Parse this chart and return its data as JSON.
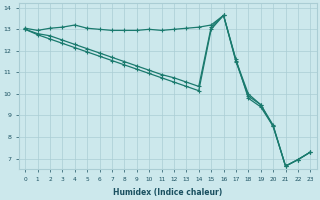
{
  "xlabel": "Humidex (Indice chaleur)",
  "bg_color": "#cce8ec",
  "grid_color": "#aacdd4",
  "line_color": "#1a7a6e",
  "xlim": [
    -0.5,
    23.5
  ],
  "ylim": [
    6.5,
    14.2
  ],
  "xticks": [
    0,
    1,
    2,
    3,
    4,
    5,
    6,
    7,
    8,
    9,
    10,
    11,
    12,
    13,
    14,
    15,
    16,
    17,
    18,
    19,
    20,
    21,
    22,
    23
  ],
  "yticks": [
    7,
    8,
    9,
    10,
    11,
    12,
    13,
    14
  ],
  "series1_x": [
    0,
    1,
    2,
    3,
    4,
    5,
    6,
    7,
    8,
    9,
    10,
    11,
    12,
    13,
    14,
    15,
    16,
    17,
    18,
    19,
    20,
    21,
    22,
    23
  ],
  "series1_y": [
    13.05,
    12.95,
    13.05,
    13.1,
    13.2,
    13.05,
    13.0,
    12.95,
    12.95,
    12.95,
    13.0,
    12.95,
    13.0,
    13.05,
    13.1,
    13.2,
    13.65,
    11.6,
    9.8,
    9.4,
    8.5,
    6.65,
    6.95,
    7.3
  ],
  "series2_x": [
    0,
    1,
    2,
    3,
    4,
    5,
    6,
    7,
    8,
    9,
    10,
    11,
    12,
    13,
    14,
    15,
    16,
    17,
    18,
    19,
    20,
    21,
    22,
    23
  ],
  "series2_y": [
    13.0,
    12.8,
    12.7,
    12.5,
    12.3,
    12.1,
    11.9,
    11.7,
    11.5,
    11.3,
    11.1,
    10.9,
    10.75,
    10.55,
    10.35,
    13.1,
    13.65,
    11.5,
    9.9,
    9.5,
    8.5,
    6.65,
    6.95,
    7.3
  ],
  "series3_x": [
    0,
    1,
    2,
    3,
    4,
    5,
    6,
    7,
    8,
    9,
    10,
    11,
    12,
    13,
    14,
    15,
    16,
    17,
    18,
    19,
    20,
    21,
    22,
    23
  ],
  "series3_y": [
    13.0,
    12.75,
    12.55,
    12.35,
    12.15,
    11.95,
    11.75,
    11.55,
    11.35,
    11.15,
    10.95,
    10.75,
    10.55,
    10.35,
    10.15,
    13.0,
    13.65,
    11.55,
    10.0,
    9.5,
    8.55,
    6.65,
    6.95,
    7.3
  ]
}
